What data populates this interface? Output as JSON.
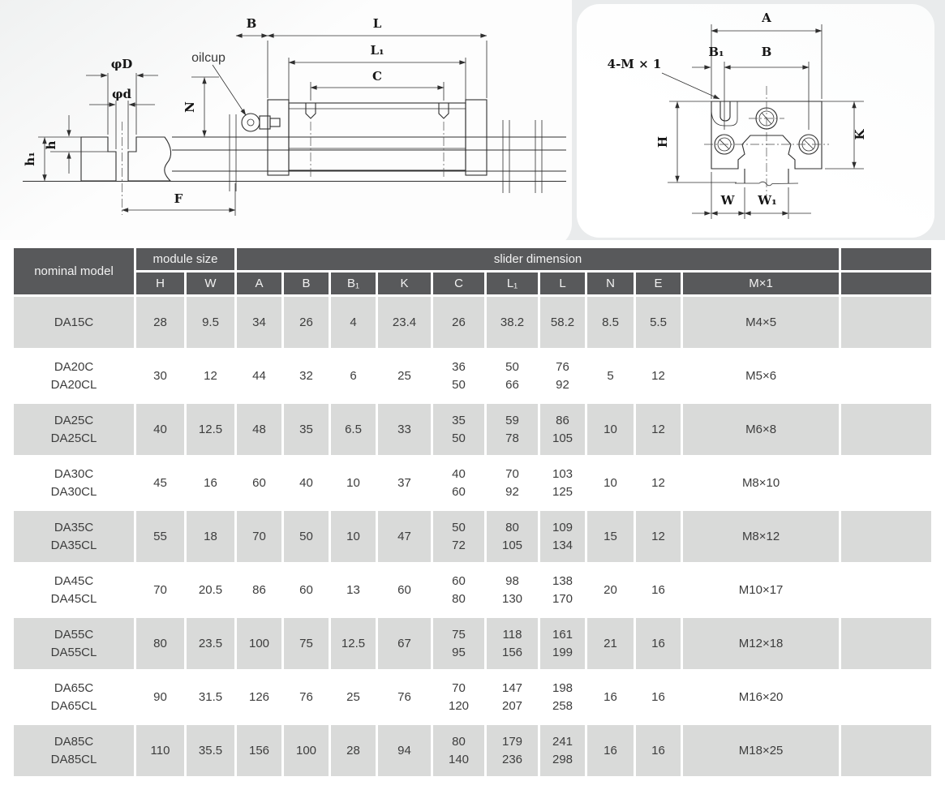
{
  "colors": {
    "header_bg": "#58595b",
    "header_text": "#f2f2f2",
    "row_alt": "#d9dad9",
    "row_white": "#ffffff",
    "body_text": "#3d3d3d",
    "line": "#2f2f2f"
  },
  "diagram_left": {
    "labels": {
      "oilcup": "oilcup",
      "phi_d_major": "φD",
      "phi_d_minor": "φd",
      "b": "B",
      "l": "L",
      "l1": "L₁",
      "c": "C",
      "n": "N",
      "h": "h",
      "h1": "h₁",
      "f": "F"
    }
  },
  "diagram_right": {
    "labels": {
      "a": "A",
      "b1": "B₁",
      "b": "B",
      "bolt_spec": "4-M × 1",
      "h": "H",
      "k": "K",
      "w": "W",
      "w1": "W₁"
    }
  },
  "table": {
    "group_headers": {
      "nominal_model": "nominal model",
      "module_size": "module size",
      "slider_dimension": "slider dimension"
    },
    "columns": [
      "H",
      "W",
      "A",
      "B",
      "B₁",
      "K",
      "C",
      "L₁",
      "L",
      "N",
      "E",
      "M×1"
    ],
    "rows": [
      {
        "model": "DA15C",
        "values": [
          "28",
          "9.5",
          "34",
          "26",
          "4",
          "23.4",
          "26",
          "38.2",
          "58.2",
          "8.5",
          "5.5",
          "M4×5"
        ]
      },
      {
        "model": "DA20C\nDA20CL",
        "values": [
          "30",
          "12",
          "44",
          "32",
          "6",
          "25",
          "36\n50",
          "50\n66",
          "76\n92",
          "5",
          "12",
          "M5×6"
        ]
      },
      {
        "model": "DA25C\nDA25CL",
        "values": [
          "40",
          "12.5",
          "48",
          "35",
          "6.5",
          "33",
          "35\n50",
          "59\n78",
          "86\n105",
          "10",
          "12",
          "M6×8"
        ]
      },
      {
        "model": "DA30C\nDA30CL",
        "values": [
          "45",
          "16",
          "60",
          "40",
          "10",
          "37",
          "40\n60",
          "70\n92",
          "103\n125",
          "10",
          "12",
          "M8×10"
        ]
      },
      {
        "model": "DA35C\nDA35CL",
        "values": [
          "55",
          "18",
          "70",
          "50",
          "10",
          "47",
          "50\n72",
          "80\n105",
          "109\n134",
          "15",
          "12",
          "M8×12"
        ]
      },
      {
        "model": "DA45C\nDA45CL",
        "values": [
          "70",
          "20.5",
          "86",
          "60",
          "13",
          "60",
          "60\n80",
          "98\n130",
          "138\n170",
          "20",
          "16",
          "M10×17"
        ]
      },
      {
        "model": "DA55C\nDA55CL",
        "values": [
          "80",
          "23.5",
          "100",
          "75",
          "12.5",
          "67",
          "75\n95",
          "118\n156",
          "161\n199",
          "21",
          "16",
          "M12×18"
        ]
      },
      {
        "model": "DA65C\nDA65CL",
        "values": [
          "90",
          "31.5",
          "126",
          "76",
          "25",
          "76",
          "70\n120",
          "147\n207",
          "198\n258",
          "16",
          "16",
          "M16×20"
        ]
      },
      {
        "model": "DA85C\nDA85CL",
        "values": [
          "110",
          "35.5",
          "156",
          "100",
          "28",
          "94",
          "80\n140",
          "179\n236",
          "241\n298",
          "16",
          "16",
          "M18×25"
        ]
      }
    ]
  }
}
